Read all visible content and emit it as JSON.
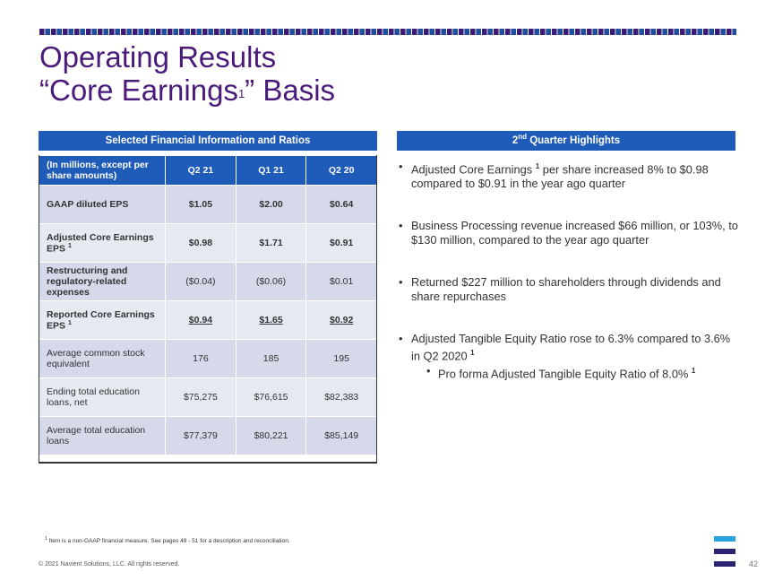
{
  "slide": {
    "title_line1": "Operating Results",
    "title_line2a": "“Core Earnings",
    "title_sup": "1",
    "title_line2b": "” Basis"
  },
  "table_panel": {
    "header": "Selected Financial Information and Ratios",
    "columns": [
      "(In millions, except per share amounts)",
      "Q2 21",
      "Q1 21",
      "Q2 20"
    ],
    "rows": [
      {
        "label": "GAAP diluted EPS",
        "sup": "",
        "values": [
          "$1.05",
          "$2.00",
          "$0.64"
        ]
      },
      {
        "label": "Adjusted Core Earnings EPS",
        "sup": "1",
        "values": [
          "$0.98",
          "$1.71",
          "$0.91"
        ]
      },
      {
        "label": "Restructuring and regulatory-related expenses",
        "sup": "",
        "values": [
          "($0.04)",
          "($0.06)",
          "$0.01"
        ]
      },
      {
        "label": "Reported Core Earnings EPS",
        "sup": "1",
        "values": [
          "$0.94",
          "$1.65",
          "$0.92"
        ]
      },
      {
        "label": "Average common stock equivalent",
        "sup": "",
        "values": [
          "176",
          "185",
          "195"
        ]
      },
      {
        "label": "Ending total education loans, net",
        "sup": "",
        "values": [
          "$75,275",
          "$76,615",
          "$82,383"
        ]
      },
      {
        "label": "Average total education loans",
        "sup": "",
        "values": [
          "$77,379",
          "$80,221",
          "$85,149"
        ]
      }
    ]
  },
  "highlights": {
    "header_pre": "2",
    "header_sup": "nd",
    "header_post": " Quarter Highlights",
    "items": [
      {
        "pre": "Adjusted Core Earnings ",
        "sup": "1",
        "post": " per share increased 8% to $0.98 compared to $0.91 in the year ago quarter"
      },
      {
        "pre": "Business Processing revenue increased $66 million, or 103%, to $130 million, compared to the year ago quarter",
        "sup": "",
        "post": ""
      },
      {
        "pre": "Returned $227 million to shareholders through dividends and share repurchases",
        "sup": "",
        "post": ""
      },
      {
        "pre": "Adjusted Tangible Equity Ratio rose to 6.3% compared to 3.6% in Q2 2020 ",
        "sup": "1",
        "post": ""
      }
    ],
    "sub_item": {
      "text": "Pro forma Adjusted Tangible Equity Ratio of 8.0%",
      "sup": "1"
    }
  },
  "footer": {
    "footnote_sup": "1",
    "footnote": " Item is a non-GAAP financial measure.  See pages 49 - 51  for a description and reconciliation.",
    "copyright": "© 2021 Navient Solutions, LLC. All rights reserved.",
    "page_number": "42"
  },
  "colors": {
    "title": "#4a1a7a",
    "header_blue": "#1f5bb8",
    "row_light": "#e6e9f2",
    "row_dark": "#d5d9ea",
    "logo_blue": "#29a3dd",
    "logo_navy": "#2a2370"
  }
}
